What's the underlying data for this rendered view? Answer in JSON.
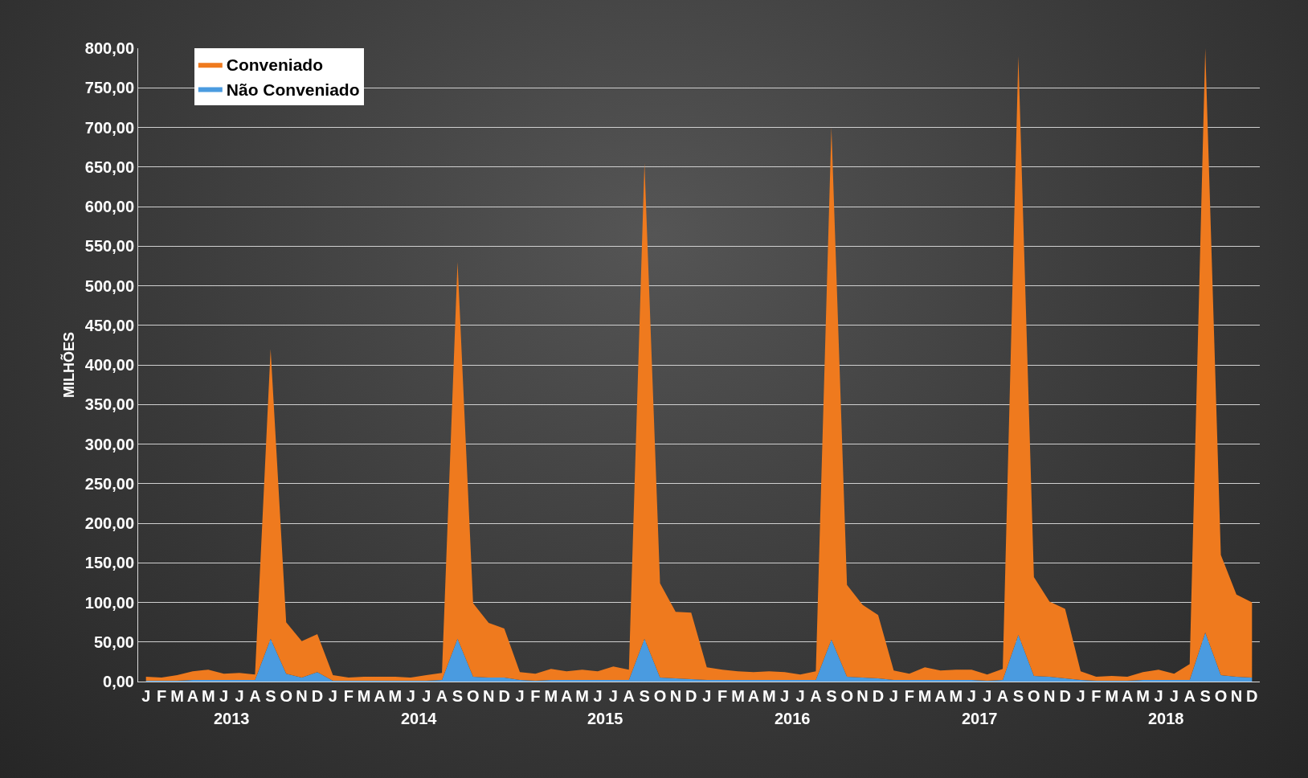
{
  "chart_data": {
    "type": "area",
    "stacked": true,
    "ylabel": "MILHÕES",
    "categories": [
      "J",
      "F",
      "M",
      "A",
      "M",
      "J",
      "J",
      "A",
      "S",
      "O",
      "N",
      "D",
      "J",
      "F",
      "M",
      "A",
      "M",
      "J",
      "J",
      "A",
      "S",
      "O",
      "N",
      "D",
      "J",
      "F",
      "M",
      "A",
      "M",
      "J",
      "J",
      "A",
      "S",
      "O",
      "N",
      "D",
      "J",
      "F",
      "M",
      "A",
      "M",
      "J",
      "J",
      "A",
      "S",
      "O",
      "N",
      "D",
      "J",
      "F",
      "M",
      "A",
      "M",
      "J",
      "J",
      "A",
      "S",
      "O",
      "N",
      "D",
      "J",
      "F",
      "M",
      "A",
      "M",
      "J",
      "J",
      "A",
      "S",
      "O",
      "N",
      "D"
    ],
    "annotations": [
      "2013",
      "2014",
      "2015",
      "2016",
      "2017",
      "2018"
    ],
    "series": [
      {
        "name": "Não Conveniado",
        "color": "#4a9be0",
        "values": [
          1,
          1,
          1,
          2,
          2,
          2,
          2,
          2,
          54,
          10,
          5,
          12,
          1,
          1,
          1,
          1,
          1,
          1,
          1,
          2,
          54,
          6,
          5,
          5,
          2,
          1,
          2,
          2,
          2,
          2,
          2,
          2,
          54,
          5,
          4,
          3,
          2,
          2,
          2,
          2,
          2,
          2,
          2,
          2,
          53,
          6,
          5,
          4,
          2,
          2,
          2,
          2,
          2,
          2,
          1,
          2,
          59,
          7,
          6,
          4,
          2,
          1,
          1,
          1,
          2,
          2,
          2,
          2,
          62,
          8,
          6,
          5
        ]
      },
      {
        "name": "Conveniado",
        "color": "#ef7a1e",
        "values": [
          5,
          4,
          7,
          11,
          13,
          8,
          9,
          7,
          366,
          65,
          46,
          48,
          7,
          4,
          5,
          5,
          5,
          4,
          7,
          9,
          476,
          93,
          69,
          62,
          10,
          9,
          14,
          11,
          13,
          11,
          17,
          13,
          601,
          119,
          84,
          84,
          16,
          13,
          11,
          10,
          11,
          10,
          7,
          11,
          647,
          116,
          92,
          80,
          12,
          8,
          16,
          12,
          13,
          13,
          8,
          14,
          731,
          125,
          95,
          88,
          11,
          5,
          6,
          5,
          10,
          13,
          8,
          20,
          738,
          152,
          104,
          95
        ]
      }
    ],
    "ylim": [
      0,
      800
    ],
    "yticks": [
      {
        "value": 0,
        "label": "0,00"
      },
      {
        "value": 50,
        "label": "50,00"
      },
      {
        "value": 100,
        "label": "100,00"
      },
      {
        "value": 150,
        "label": "150,00"
      },
      {
        "value": 200,
        "label": "200,00"
      },
      {
        "value": 250,
        "label": "250,00"
      },
      {
        "value": 300,
        "label": "300,00"
      },
      {
        "value": 350,
        "label": "350,00"
      },
      {
        "value": 400,
        "label": "400,00"
      },
      {
        "value": 450,
        "label": "450,00"
      },
      {
        "value": 500,
        "label": "500,00"
      },
      {
        "value": 550,
        "label": "550,00"
      },
      {
        "value": 600,
        "label": "600,00"
      },
      {
        "value": 650,
        "label": "650,00"
      },
      {
        "value": 700,
        "label": "700,00"
      },
      {
        "value": 750,
        "label": "750,00"
      },
      {
        "value": 800,
        "label": "800,00"
      }
    ],
    "grid": "y",
    "legend": "top left"
  }
}
